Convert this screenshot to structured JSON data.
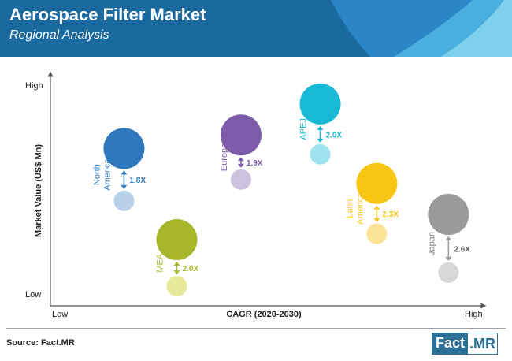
{
  "header": {
    "title": "Aerospace Filter Market",
    "subtitle": "Regional Analysis"
  },
  "footer": {
    "source": "Source: Fact.MR",
    "brand_part1": "Fact",
    "brand_part2": ".MR"
  },
  "colors": {
    "header_bg": "#1a6aa0",
    "header_wave_1": "#2a86c4",
    "header_wave_2": "#4aaede",
    "header_wave_3": "#7fd0ee"
  },
  "chart_data": {
    "type": "scatter",
    "xlabel": "CAGR (2020-2030)",
    "ylabel": "Market Value (US$ Mn)",
    "x_tick_labels": [
      "Low",
      "High"
    ],
    "y_tick_labels": [
      "Low",
      "High"
    ],
    "xlim": [
      0,
      1
    ],
    "ylim": [
      0,
      1
    ],
    "series": [
      {
        "name": "North America",
        "label_lines": [
          "North",
          "America"
        ],
        "multiplier": "1.8X",
        "color": "#2f78bd",
        "light_color": "#b8d0e8",
        "x": 0.17,
        "y_high": 0.73,
        "y_low": 0.46,
        "size_high": 1.0,
        "size_low": 0.5
      },
      {
        "name": "MEA",
        "label_lines": [
          "MEA"
        ],
        "multiplier": "2.0X",
        "color": "#a7b62a",
        "light_color": "#e6ea9a",
        "x": 0.31,
        "y_high": 0.26,
        "y_low": 0.02,
        "size_high": 1.0,
        "size_low": 0.5
      },
      {
        "name": "Europe",
        "label_lines": [
          "Europe"
        ],
        "multiplier": "1.9X",
        "color": "#7c5ca8",
        "light_color": "#cdc2dd",
        "x": 0.48,
        "y_high": 0.8,
        "y_low": 0.57,
        "size_high": 1.0,
        "size_low": 0.5
      },
      {
        "name": "APEJ",
        "label_lines": [
          "APEJ"
        ],
        "multiplier": "2.0X",
        "color": "#17b9d6",
        "light_color": "#9fe2f0",
        "x": 0.69,
        "y_high": 0.96,
        "y_low": 0.7,
        "size_high": 1.0,
        "size_low": 0.5
      },
      {
        "name": "Latin America",
        "label_lines": [
          "Latin",
          "America"
        ],
        "multiplier": "2.3X",
        "color": "#f8c514",
        "light_color": "#fbe295",
        "x": 0.84,
        "y_high": 0.55,
        "y_low": 0.29,
        "size_high": 1.0,
        "size_low": 0.5
      },
      {
        "name": "Japan",
        "label_lines": [
          "Japan"
        ],
        "multiplier": "2.6X",
        "color": "#9a9a9a",
        "light_color": "#d7d7d7",
        "x": 1.03,
        "y_high": 0.39,
        "y_low": 0.09,
        "size_high": 1.0,
        "size_low": 0.5
      }
    ]
  }
}
